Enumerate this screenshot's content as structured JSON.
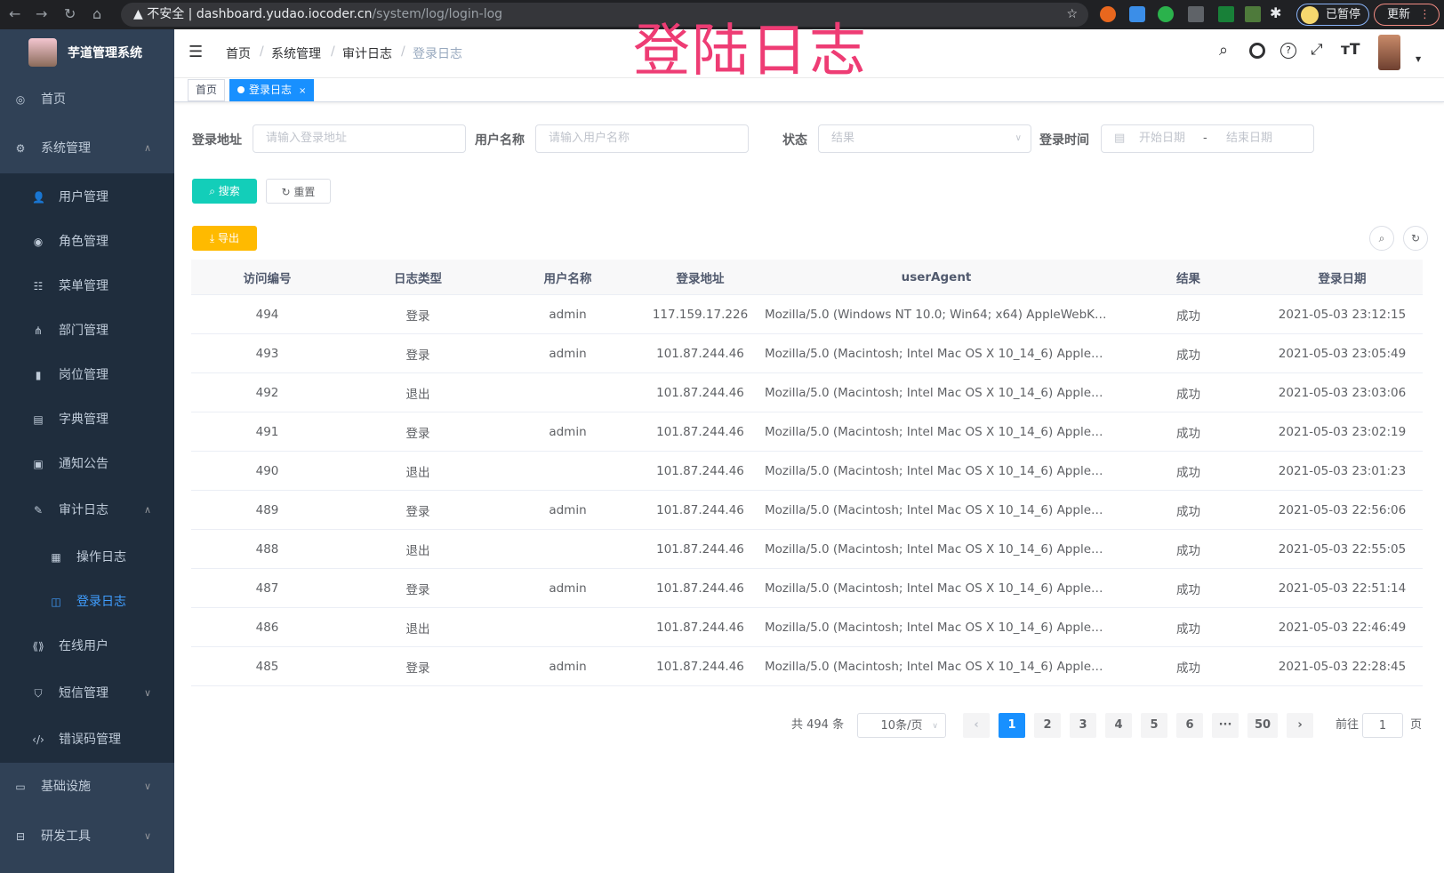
{
  "browser": {
    "insecure_label": "不安全",
    "url_host": "dashboard.yudao.iocoder.cn",
    "url_path": "/system/log/login-log",
    "profile_label": "已暂停",
    "update_label": "更新"
  },
  "overlay_title": "登陆日志",
  "app": {
    "title": "芋道管理系统"
  },
  "sidebar": {
    "items": [
      {
        "label": "首页",
        "icon": "dashboard-icon"
      },
      {
        "label": "系统管理",
        "icon": "gear-icon",
        "expanded": true
      },
      {
        "label": "用户管理",
        "icon": "user-icon"
      },
      {
        "label": "角色管理",
        "icon": "peoples-icon"
      },
      {
        "label": "菜单管理",
        "icon": "tree-table-icon"
      },
      {
        "label": "部门管理",
        "icon": "tree-icon"
      },
      {
        "label": "岗位管理",
        "icon": "post-icon"
      },
      {
        "label": "字典管理",
        "icon": "dict-icon"
      },
      {
        "label": "通知公告",
        "icon": "message-icon"
      },
      {
        "label": "审计日志",
        "icon": "log-icon",
        "expanded": true
      },
      {
        "label": "操作日志",
        "icon": "form-icon"
      },
      {
        "label": "登录日志",
        "icon": "logininfor-icon",
        "active": true
      },
      {
        "label": "在线用户",
        "icon": "online-icon"
      },
      {
        "label": "短信管理",
        "icon": "shield-icon"
      },
      {
        "label": "错误码管理",
        "icon": "code-icon"
      },
      {
        "label": "基础设施",
        "icon": "monitor-icon"
      },
      {
        "label": "研发工具",
        "icon": "tool-icon"
      }
    ]
  },
  "breadcrumb": [
    "首页",
    "系统管理",
    "审计日志",
    "登录日志"
  ],
  "tags": [
    {
      "label": "首页"
    },
    {
      "label": "登录日志",
      "active": true
    }
  ],
  "search": {
    "ip_label": "登录地址",
    "ip_placeholder": "请输入登录地址",
    "user_label": "用户名称",
    "user_placeholder": "请输入用户名称",
    "status_label": "状态",
    "status_placeholder": "结果",
    "time_label": "登录时间",
    "start_placeholder": "开始日期",
    "sep": "-",
    "end_placeholder": "结束日期",
    "search_btn": "搜索",
    "reset_btn": "重置",
    "export_btn": "导出"
  },
  "colors": {
    "primary": "#1890ff",
    "search_btn": "#13ceb9",
    "export_btn": "#ffba00",
    "sidebar_bg": "#304156",
    "submenu_bg": "#1f2d3d"
  },
  "table": {
    "headers": [
      "访问编号",
      "日志类型",
      "用户名称",
      "登录地址",
      "userAgent",
      "结果",
      "登录日期"
    ],
    "rows": [
      [
        "494",
        "登录",
        "admin",
        "117.159.17.226",
        "Mozilla/5.0 (Windows NT 10.0; Win64; x64) AppleWebKit...",
        "成功",
        "2021-05-03 23:12:15"
      ],
      [
        "493",
        "登录",
        "admin",
        "101.87.244.46",
        "Mozilla/5.0 (Macintosh; Intel Mac OS X 10_14_6) AppleWe...",
        "成功",
        "2021-05-03 23:05:49"
      ],
      [
        "492",
        "退出",
        "",
        "101.87.244.46",
        "Mozilla/5.0 (Macintosh; Intel Mac OS X 10_14_6) AppleWe...",
        "成功",
        "2021-05-03 23:03:06"
      ],
      [
        "491",
        "登录",
        "admin",
        "101.87.244.46",
        "Mozilla/5.0 (Macintosh; Intel Mac OS X 10_14_6) AppleWe...",
        "成功",
        "2021-05-03 23:02:19"
      ],
      [
        "490",
        "退出",
        "",
        "101.87.244.46",
        "Mozilla/5.0 (Macintosh; Intel Mac OS X 10_14_6) AppleWe...",
        "成功",
        "2021-05-03 23:01:23"
      ],
      [
        "489",
        "登录",
        "admin",
        "101.87.244.46",
        "Mozilla/5.0 (Macintosh; Intel Mac OS X 10_14_6) AppleWe...",
        "成功",
        "2021-05-03 22:56:06"
      ],
      [
        "488",
        "退出",
        "",
        "101.87.244.46",
        "Mozilla/5.0 (Macintosh; Intel Mac OS X 10_14_6) AppleWe...",
        "成功",
        "2021-05-03 22:55:05"
      ],
      [
        "487",
        "登录",
        "admin",
        "101.87.244.46",
        "Mozilla/5.0 (Macintosh; Intel Mac OS X 10_14_6) AppleWe...",
        "成功",
        "2021-05-03 22:51:14"
      ],
      [
        "486",
        "退出",
        "",
        "101.87.244.46",
        "Mozilla/5.0 (Macintosh; Intel Mac OS X 10_14_6) AppleWe...",
        "成功",
        "2021-05-03 22:46:49"
      ],
      [
        "485",
        "登录",
        "admin",
        "101.87.244.46",
        "Mozilla/5.0 (Macintosh; Intel Mac OS X 10_14_6) AppleWe...",
        "成功",
        "2021-05-03 22:28:45"
      ]
    ]
  },
  "pagination": {
    "total": "共 494 条",
    "page_size": "10条/页",
    "pages": [
      "1",
      "2",
      "3",
      "4",
      "5",
      "6",
      "···",
      "50"
    ],
    "current": "1",
    "goto_label": "前往",
    "goto_value": "1",
    "page_unit": "页"
  }
}
